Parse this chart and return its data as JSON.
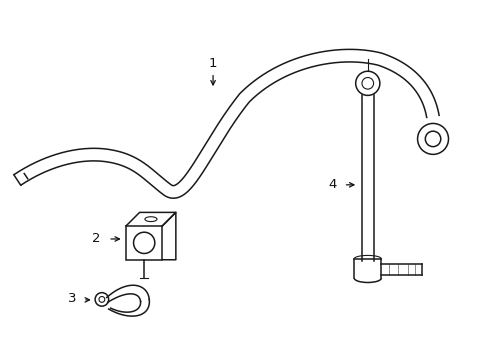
{
  "bg_color": "#ffffff",
  "line_color": "#1a1a1a",
  "text_color": "#111111",
  "figsize": [
    4.89,
    3.6
  ],
  "dpi": 100
}
